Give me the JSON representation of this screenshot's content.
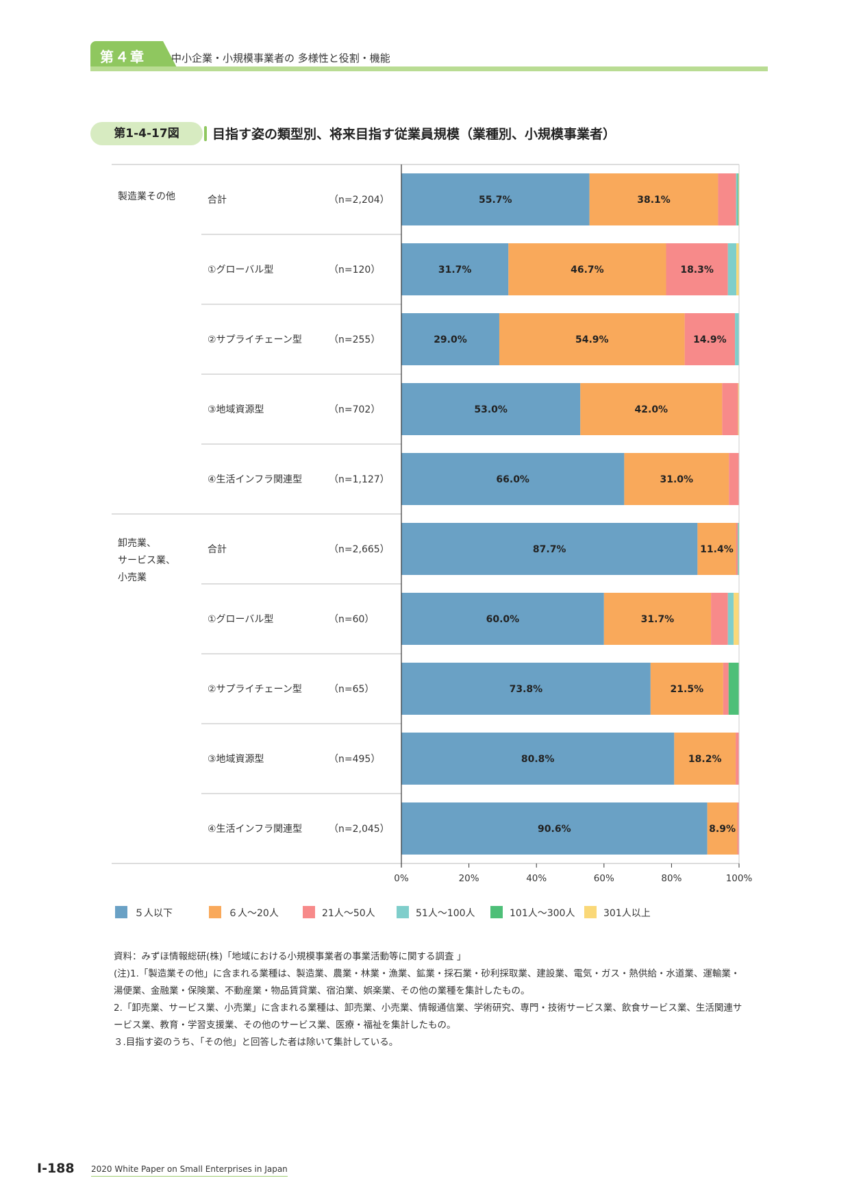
{
  "header": {
    "chapter_label": "第４章",
    "chapter_title": "中小企業・小規模事業者の 多様性と役割・機能"
  },
  "figure": {
    "number": "第1-4-17図",
    "title": "目指す姿の類型別、将来目指す従業員規模（業種別、小規模事業者）"
  },
  "chart_data": {
    "type": "bar",
    "orientation": "horizontal",
    "stacked": true,
    "percent": true,
    "xlim": [
      0,
      100
    ],
    "x_ticks": [
      "0%",
      "20%",
      "40%",
      "60%",
      "80%",
      "100%"
    ],
    "series_names": [
      "５人以下",
      "６人～20人",
      "21人～50人",
      "51人～100人",
      "101人～300人",
      "301人以上"
    ],
    "series_colors": [
      "#6aa1c5",
      "#f9a95b",
      "#f78a8a",
      "#7fcecb",
      "#4ebf78",
      "#fad878"
    ],
    "groups": [
      {
        "name": "製造業その他",
        "rows": [
          {
            "label": "合計",
            "n": "（n=2,204）",
            "values": [
              55.7,
              38.1,
              5.3,
              0.5,
              0.2,
              0.2
            ],
            "labels": [
              "55.7%",
              "38.1%",
              "",
              "",
              "",
              ""
            ]
          },
          {
            "label": "①グローバル型",
            "n": "（n=120）",
            "values": [
              31.7,
              46.7,
              18.3,
              2.5,
              0.0,
              0.8
            ],
            "labels": [
              "31.7%",
              "46.7%",
              "18.3%",
              "",
              "",
              ""
            ]
          },
          {
            "label": "②サプライチェーン型",
            "n": "（n=255）",
            "values": [
              29.0,
              54.9,
              14.9,
              1.2,
              0.0,
              0.0
            ],
            "labels": [
              "29.0%",
              "54.9%",
              "14.9%",
              "",
              "",
              ""
            ]
          },
          {
            "label": "③地域資源型",
            "n": "（n=702）",
            "values": [
              53.0,
              42.0,
              4.7,
              0.0,
              0.0,
              0.3
            ],
            "labels": [
              "53.0%",
              "42.0%",
              "",
              "",
              "",
              ""
            ]
          },
          {
            "label": "④生活インフラ関連型",
            "n": "（n=1,127）",
            "values": [
              66.0,
              31.0,
              3.0,
              0.0,
              0.0,
              0.0
            ],
            "labels": [
              "66.0%",
              "31.0%",
              "",
              "",
              "",
              ""
            ]
          }
        ]
      },
      {
        "name": "卸売業、\nサービス業、\n小売業",
        "name_lines": [
          "卸売業、",
          "サービス業、",
          "小売業"
        ],
        "rows": [
          {
            "label": "合計",
            "n": "（n=2,665）",
            "values": [
              87.7,
              11.4,
              0.5,
              0.2,
              0.1,
              0.1
            ],
            "labels": [
              "87.7%",
              "11.4%",
              "",
              "",
              "",
              ""
            ]
          },
          {
            "label": "①グローバル型",
            "n": "（n=60）",
            "values": [
              60.0,
              31.7,
              5.0,
              1.7,
              0.0,
              1.6
            ],
            "labels": [
              "60.0%",
              "31.7%",
              "",
              "",
              "",
              ""
            ]
          },
          {
            "label": "②サプライチェーン型",
            "n": "（n=65）",
            "values": [
              73.8,
              21.5,
              1.6,
              0.0,
              3.1,
              0.0
            ],
            "labels": [
              "73.8%",
              "21.5%",
              "",
              "",
              "",
              ""
            ]
          },
          {
            "label": "③地域資源型",
            "n": "（n=495）",
            "values": [
              80.8,
              18.2,
              1.0,
              0.0,
              0.0,
              0.0
            ],
            "labels": [
              "80.8%",
              "18.2%",
              "",
              "",
              "",
              ""
            ]
          },
          {
            "label": "④生活インフラ関連型",
            "n": "（n=2,045）",
            "values": [
              90.6,
              8.9,
              0.5,
              0.0,
              0.0,
              0.0
            ],
            "labels": [
              "90.6%",
              "8.9%",
              "",
              "",
              "",
              ""
            ]
          }
        ]
      }
    ]
  },
  "notes": [
    "資料：みずほ情報総研(株)「地域における小規模事業者の事業活動等に関する調査 」",
    "(注)1.「製造業その他」に含まれる業種は、製造業、農業・林業・漁業、鉱業・採石業・砂利採取業、建設業、電気・ガス・熱供給・水道業、運輸業・湯便業、金融業・保険業、不動産業・物品賃貸業、宿泊業、娯楽業、その他の業種を集計したもの。",
    "2.「卸売業、サービス業、小売業」に含まれる業種は、卸売業、小売業、情報通信業、学術研究、専門・技術サービス業、飲食サービス業、生活関連サービス業、教育・学習支援業、その他のサービス業、医療・福祉を集計したもの。",
    "３.目指す姿のうち、「その他」と回答した者は除いて集計している。"
  ],
  "footer": {
    "page": "Ⅰ-188",
    "book": "2020 White Paper on Small Enterprises in Japan"
  }
}
